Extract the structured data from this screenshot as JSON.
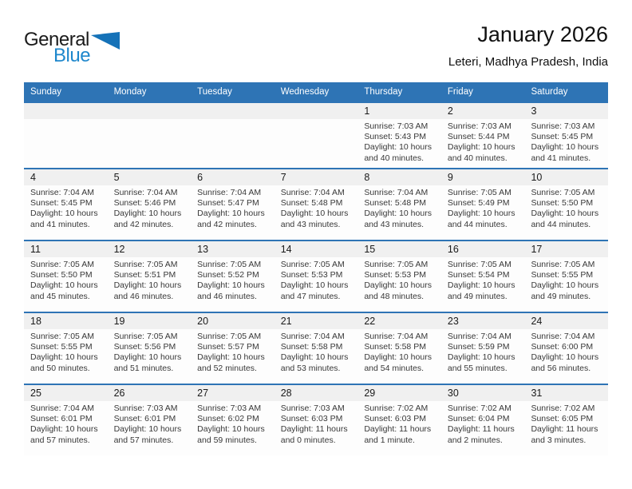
{
  "logo": {
    "general": "General",
    "blue": "Blue"
  },
  "header": {
    "title": "January 2026",
    "subtitle": "Leteri, Madhya Pradesh, India"
  },
  "labels": {
    "sunrise": "Sunrise:",
    "sunset": "Sunset:",
    "daylight": "Daylight:"
  },
  "colors": {
    "header_bar": "#2e74b5",
    "week_border": "#2e74b5",
    "day_number_strip": "#f0f0f0",
    "logo_triangle": "#1572b8",
    "logo_blue_text": "#1e87cc"
  },
  "weekday_headers": [
    "Sunday",
    "Monday",
    "Tuesday",
    "Wednesday",
    "Thursday",
    "Friday",
    "Saturday"
  ],
  "weeks": [
    {
      "days": [
        null,
        null,
        null,
        null,
        {
          "date": "1",
          "sunrise": "7:03 AM",
          "sunset": "5:43 PM",
          "daylight": "10 hours and 40 minutes."
        },
        {
          "date": "2",
          "sunrise": "7:03 AM",
          "sunset": "5:44 PM",
          "daylight": "10 hours and 40 minutes."
        },
        {
          "date": "3",
          "sunrise": "7:03 AM",
          "sunset": "5:45 PM",
          "daylight": "10 hours and 41 minutes."
        }
      ]
    },
    {
      "days": [
        {
          "date": "4",
          "sunrise": "7:04 AM",
          "sunset": "5:45 PM",
          "daylight": "10 hours and 41 minutes."
        },
        {
          "date": "5",
          "sunrise": "7:04 AM",
          "sunset": "5:46 PM",
          "daylight": "10 hours and 42 minutes."
        },
        {
          "date": "6",
          "sunrise": "7:04 AM",
          "sunset": "5:47 PM",
          "daylight": "10 hours and 42 minutes."
        },
        {
          "date": "7",
          "sunrise": "7:04 AM",
          "sunset": "5:48 PM",
          "daylight": "10 hours and 43 minutes."
        },
        {
          "date": "8",
          "sunrise": "7:04 AM",
          "sunset": "5:48 PM",
          "daylight": "10 hours and 43 minutes."
        },
        {
          "date": "9",
          "sunrise": "7:05 AM",
          "sunset": "5:49 PM",
          "daylight": "10 hours and 44 minutes."
        },
        {
          "date": "10",
          "sunrise": "7:05 AM",
          "sunset": "5:50 PM",
          "daylight": "10 hours and 44 minutes."
        }
      ]
    },
    {
      "days": [
        {
          "date": "11",
          "sunrise": "7:05 AM",
          "sunset": "5:50 PM",
          "daylight": "10 hours and 45 minutes."
        },
        {
          "date": "12",
          "sunrise": "7:05 AM",
          "sunset": "5:51 PM",
          "daylight": "10 hours and 46 minutes."
        },
        {
          "date": "13",
          "sunrise": "7:05 AM",
          "sunset": "5:52 PM",
          "daylight": "10 hours and 46 minutes."
        },
        {
          "date": "14",
          "sunrise": "7:05 AM",
          "sunset": "5:53 PM",
          "daylight": "10 hours and 47 minutes."
        },
        {
          "date": "15",
          "sunrise": "7:05 AM",
          "sunset": "5:53 PM",
          "daylight": "10 hours and 48 minutes."
        },
        {
          "date": "16",
          "sunrise": "7:05 AM",
          "sunset": "5:54 PM",
          "daylight": "10 hours and 49 minutes."
        },
        {
          "date": "17",
          "sunrise": "7:05 AM",
          "sunset": "5:55 PM",
          "daylight": "10 hours and 49 minutes."
        }
      ]
    },
    {
      "days": [
        {
          "date": "18",
          "sunrise": "7:05 AM",
          "sunset": "5:55 PM",
          "daylight": "10 hours and 50 minutes."
        },
        {
          "date": "19",
          "sunrise": "7:05 AM",
          "sunset": "5:56 PM",
          "daylight": "10 hours and 51 minutes."
        },
        {
          "date": "20",
          "sunrise": "7:05 AM",
          "sunset": "5:57 PM",
          "daylight": "10 hours and 52 minutes."
        },
        {
          "date": "21",
          "sunrise": "7:04 AM",
          "sunset": "5:58 PM",
          "daylight": "10 hours and 53 minutes."
        },
        {
          "date": "22",
          "sunrise": "7:04 AM",
          "sunset": "5:58 PM",
          "daylight": "10 hours and 54 minutes."
        },
        {
          "date": "23",
          "sunrise": "7:04 AM",
          "sunset": "5:59 PM",
          "daylight": "10 hours and 55 minutes."
        },
        {
          "date": "24",
          "sunrise": "7:04 AM",
          "sunset": "6:00 PM",
          "daylight": "10 hours and 56 minutes."
        }
      ]
    },
    {
      "days": [
        {
          "date": "25",
          "sunrise": "7:04 AM",
          "sunset": "6:01 PM",
          "daylight": "10 hours and 57 minutes."
        },
        {
          "date": "26",
          "sunrise": "7:03 AM",
          "sunset": "6:01 PM",
          "daylight": "10 hours and 57 minutes."
        },
        {
          "date": "27",
          "sunrise": "7:03 AM",
          "sunset": "6:02 PM",
          "daylight": "10 hours and 59 minutes."
        },
        {
          "date": "28",
          "sunrise": "7:03 AM",
          "sunset": "6:03 PM",
          "daylight": "11 hours and 0 minutes."
        },
        {
          "date": "29",
          "sunrise": "7:02 AM",
          "sunset": "6:03 PM",
          "daylight": "11 hours and 1 minute."
        },
        {
          "date": "30",
          "sunrise": "7:02 AM",
          "sunset": "6:04 PM",
          "daylight": "11 hours and 2 minutes."
        },
        {
          "date": "31",
          "sunrise": "7:02 AM",
          "sunset": "6:05 PM",
          "daylight": "11 hours and 3 minutes."
        }
      ]
    }
  ]
}
